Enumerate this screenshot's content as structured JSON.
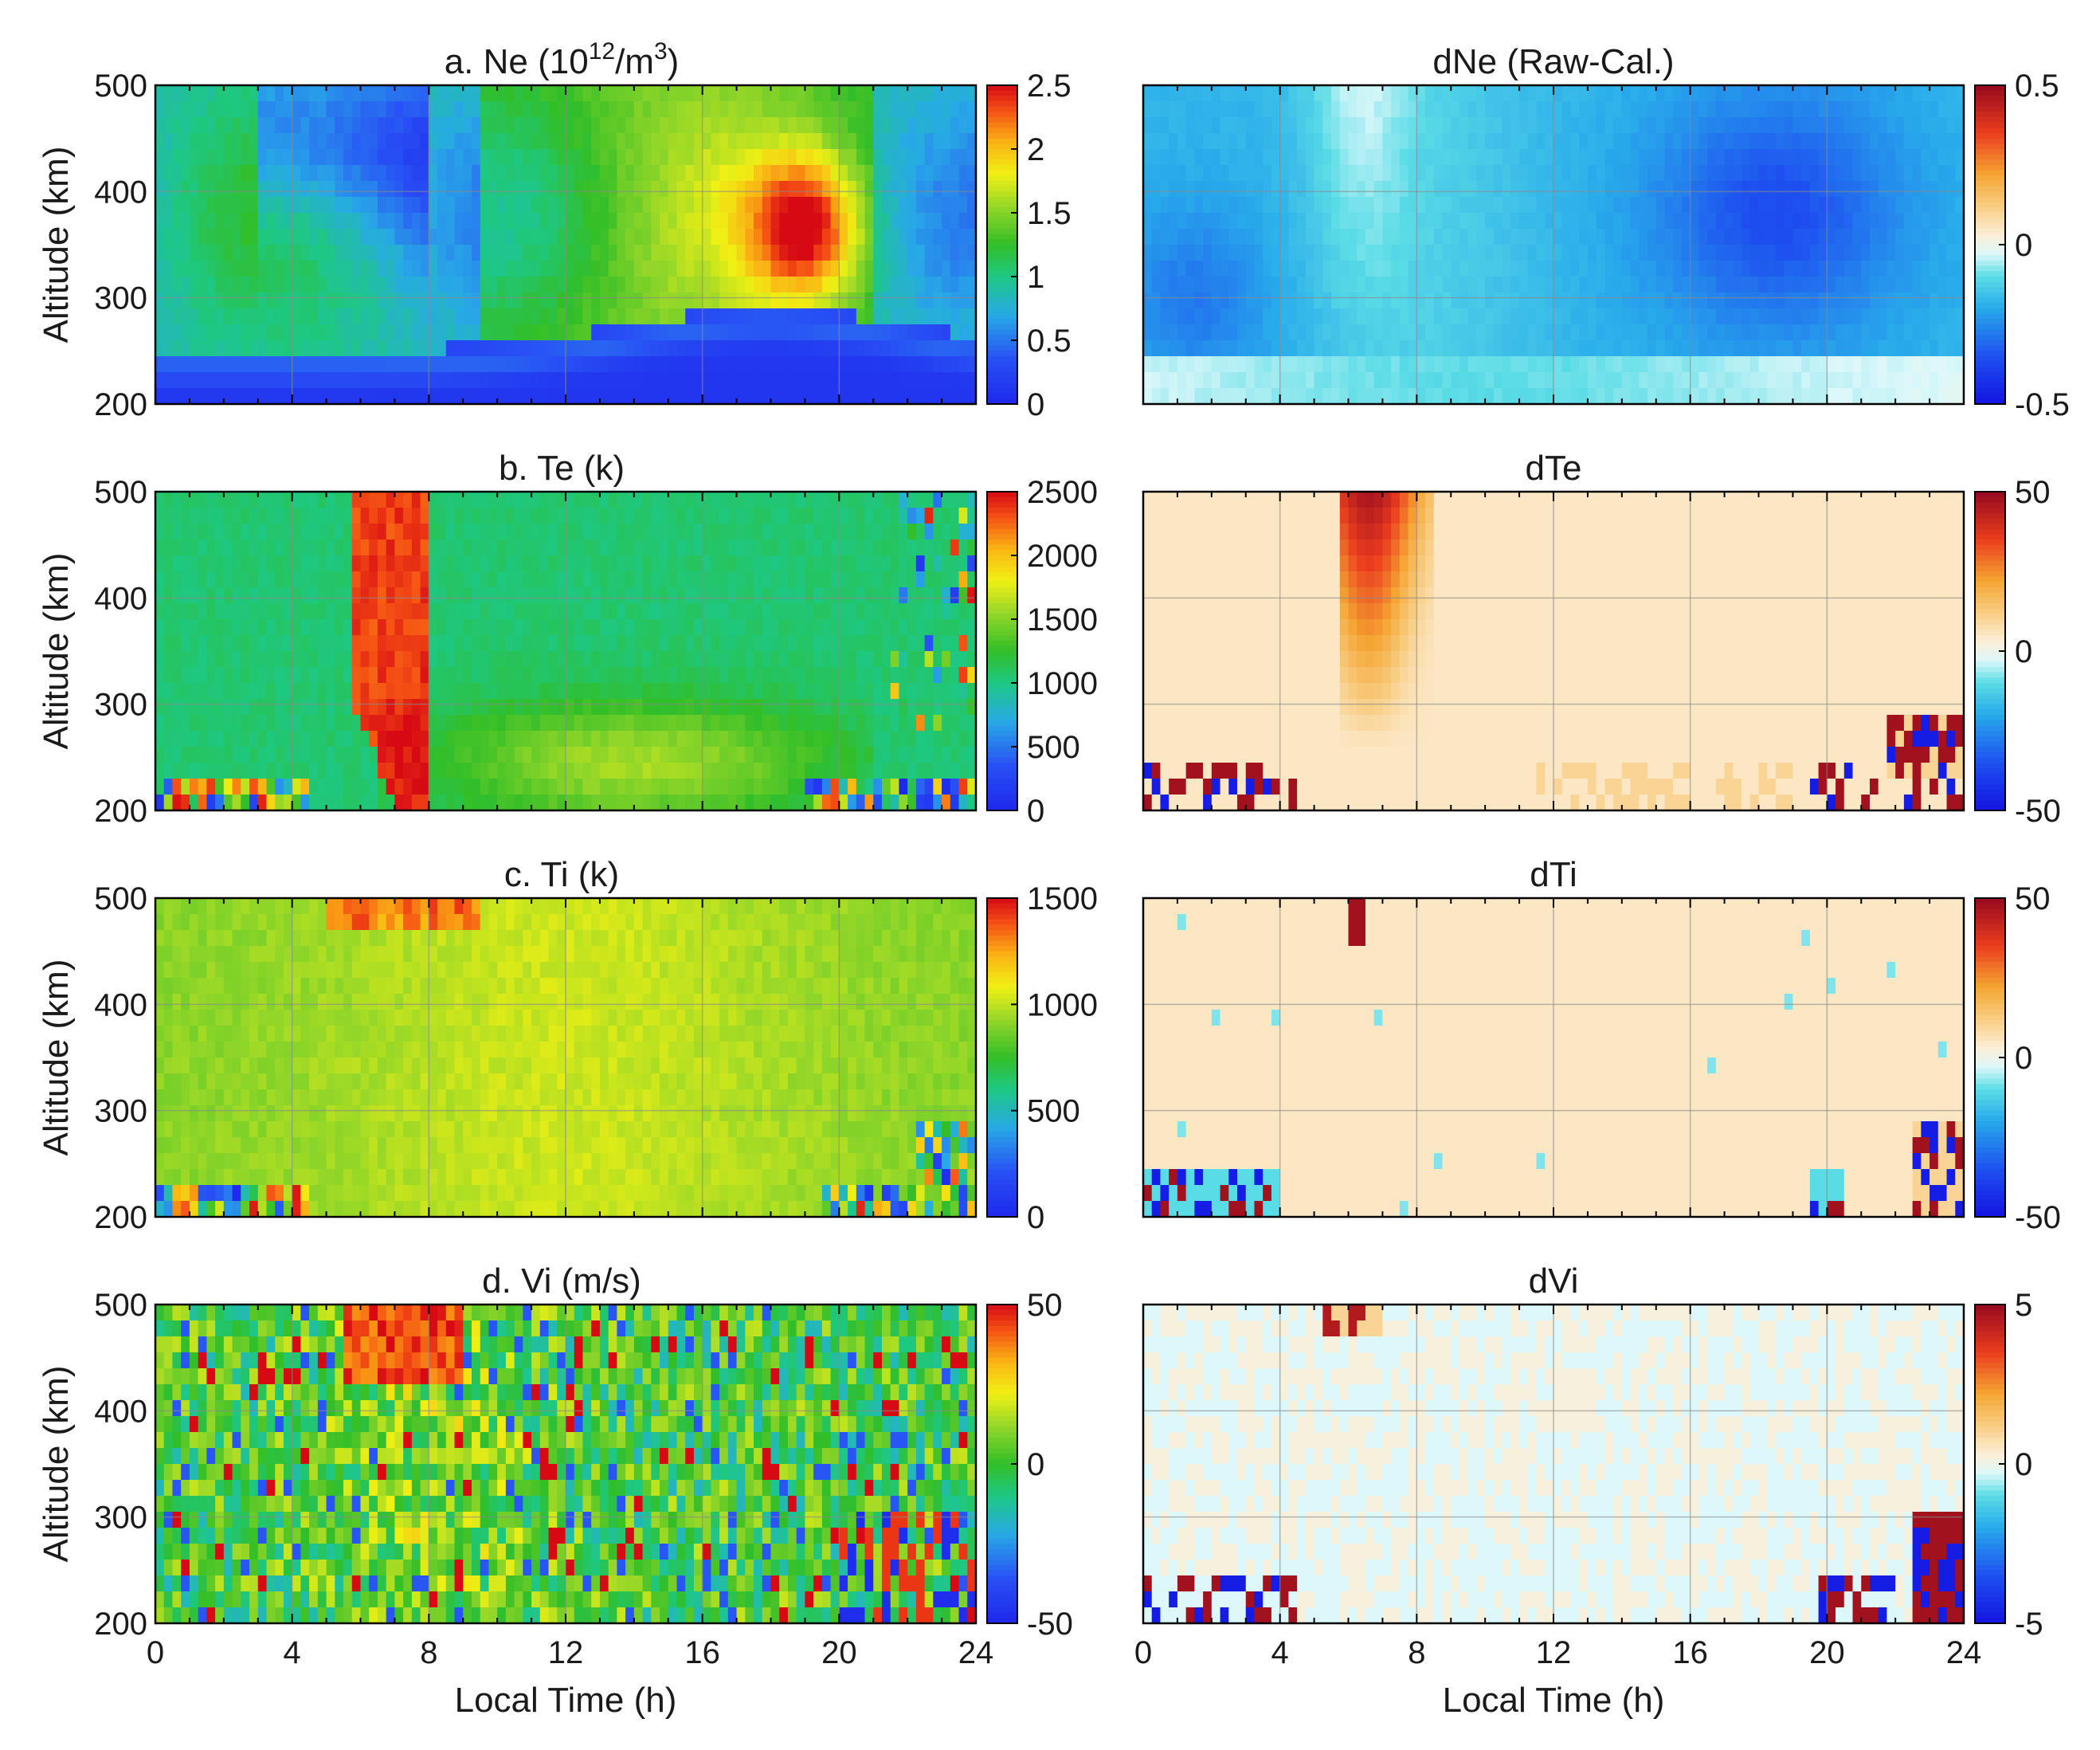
{
  "chart_data": [
    {
      "type": "heatmap",
      "id": "ne",
      "title": "a. Ne (10",
      "title_sup1": "12",
      "title_mid": "/m",
      "title_sup2": "3",
      "title_end": ")",
      "x": {
        "range": [
          0,
          24
        ],
        "ticks": [
          0,
          4,
          8,
          12,
          16,
          20,
          24
        ],
        "label": "Local Time (h)"
      },
      "y": {
        "range": [
          200,
          500
        ],
        "ticks": [
          200,
          300,
          400,
          500
        ],
        "label": "Altitude (km)"
      },
      "colorbar": {
        "range": [
          0,
          2.5
        ],
        "ticks": [
          "0",
          "0.5",
          "1",
          "1.5",
          "2",
          "2.5"
        ],
        "colormap": "jet"
      }
    },
    {
      "type": "heatmap",
      "id": "dne",
      "title": "dNe (Raw-Cal.)",
      "x": {
        "range": [
          0,
          24
        ],
        "ticks": [
          0,
          4,
          8,
          12,
          16,
          20,
          24
        ],
        "label": "Local Time (h)"
      },
      "y": {
        "range": [
          200,
          500
        ]
      },
      "colorbar": {
        "range": [
          -0.5,
          0.5
        ],
        "ticks": [
          "-0.5",
          "0",
          "0.5"
        ],
        "colormap": "diverging"
      }
    },
    {
      "type": "heatmap",
      "id": "te",
      "title": "b. Te (k)",
      "x": {
        "range": [
          0,
          24
        ],
        "ticks": [
          0,
          4,
          8,
          12,
          16,
          20,
          24
        ],
        "label": "Local Time (h)"
      },
      "y": {
        "range": [
          200,
          500
        ],
        "ticks": [
          200,
          300,
          400,
          500
        ],
        "label": "Altitude (km)"
      },
      "colorbar": {
        "range": [
          0,
          2500
        ],
        "ticks": [
          "0",
          "500",
          "1000",
          "1500",
          "2000",
          "2500"
        ],
        "colormap": "jet"
      }
    },
    {
      "type": "heatmap",
      "id": "dte",
      "title": "dTe",
      "x": {
        "range": [
          0,
          24
        ],
        "ticks": [
          0,
          4,
          8,
          12,
          16,
          20,
          24
        ],
        "label": "Local Time (h)"
      },
      "y": {
        "range": [
          200,
          500
        ]
      },
      "colorbar": {
        "range": [
          -50,
          50
        ],
        "ticks": [
          "-50",
          "0",
          "50"
        ],
        "colormap": "diverging"
      }
    },
    {
      "type": "heatmap",
      "id": "ti",
      "title": "c. Ti (k)",
      "x": {
        "range": [
          0,
          24
        ],
        "ticks": [
          0,
          4,
          8,
          12,
          16,
          20,
          24
        ],
        "label": "Local Time (h)"
      },
      "y": {
        "range": [
          200,
          500
        ],
        "ticks": [
          200,
          300,
          400,
          500
        ],
        "label": "Altitude (km)"
      },
      "colorbar": {
        "range": [
          0,
          1500
        ],
        "ticks": [
          "0",
          "500",
          "1000",
          "1500"
        ],
        "colormap": "jet"
      }
    },
    {
      "type": "heatmap",
      "id": "dti",
      "title": "dTi",
      "x": {
        "range": [
          0,
          24
        ],
        "ticks": [
          0,
          4,
          8,
          12,
          16,
          20,
          24
        ],
        "label": "Local Time (h)"
      },
      "y": {
        "range": [
          200,
          500
        ]
      },
      "colorbar": {
        "range": [
          -50,
          50
        ],
        "ticks": [
          "-50",
          "0",
          "50"
        ],
        "colormap": "diverging"
      }
    },
    {
      "type": "heatmap",
      "id": "vi",
      "title": "d. Vi (m/s)",
      "x": {
        "range": [
          0,
          24
        ],
        "ticks": [
          0,
          4,
          8,
          12,
          16,
          20,
          24
        ],
        "label": "Local Time (h)"
      },
      "y": {
        "range": [
          200,
          500
        ],
        "ticks": [
          200,
          300,
          400,
          500
        ],
        "label": "Altitude (km)"
      },
      "colorbar": {
        "range": [
          -50,
          50
        ],
        "ticks": [
          "-50",
          "0",
          "50"
        ],
        "colormap": "jet"
      }
    },
    {
      "type": "heatmap",
      "id": "dvi",
      "title": "dVi",
      "x": {
        "range": [
          0,
          24
        ],
        "ticks": [
          0,
          4,
          8,
          12,
          16,
          20,
          24
        ],
        "label": "Local Time (h)"
      },
      "y": {
        "range": [
          200,
          500
        ]
      },
      "colorbar": {
        "range": [
          -5,
          5
        ],
        "ticks": [
          "-5",
          "0",
          "5"
        ],
        "colormap": "diverging"
      }
    }
  ],
  "colors": {
    "frame": "#000000",
    "grid": "#8a8a8a",
    "background": "#ffffff"
  }
}
